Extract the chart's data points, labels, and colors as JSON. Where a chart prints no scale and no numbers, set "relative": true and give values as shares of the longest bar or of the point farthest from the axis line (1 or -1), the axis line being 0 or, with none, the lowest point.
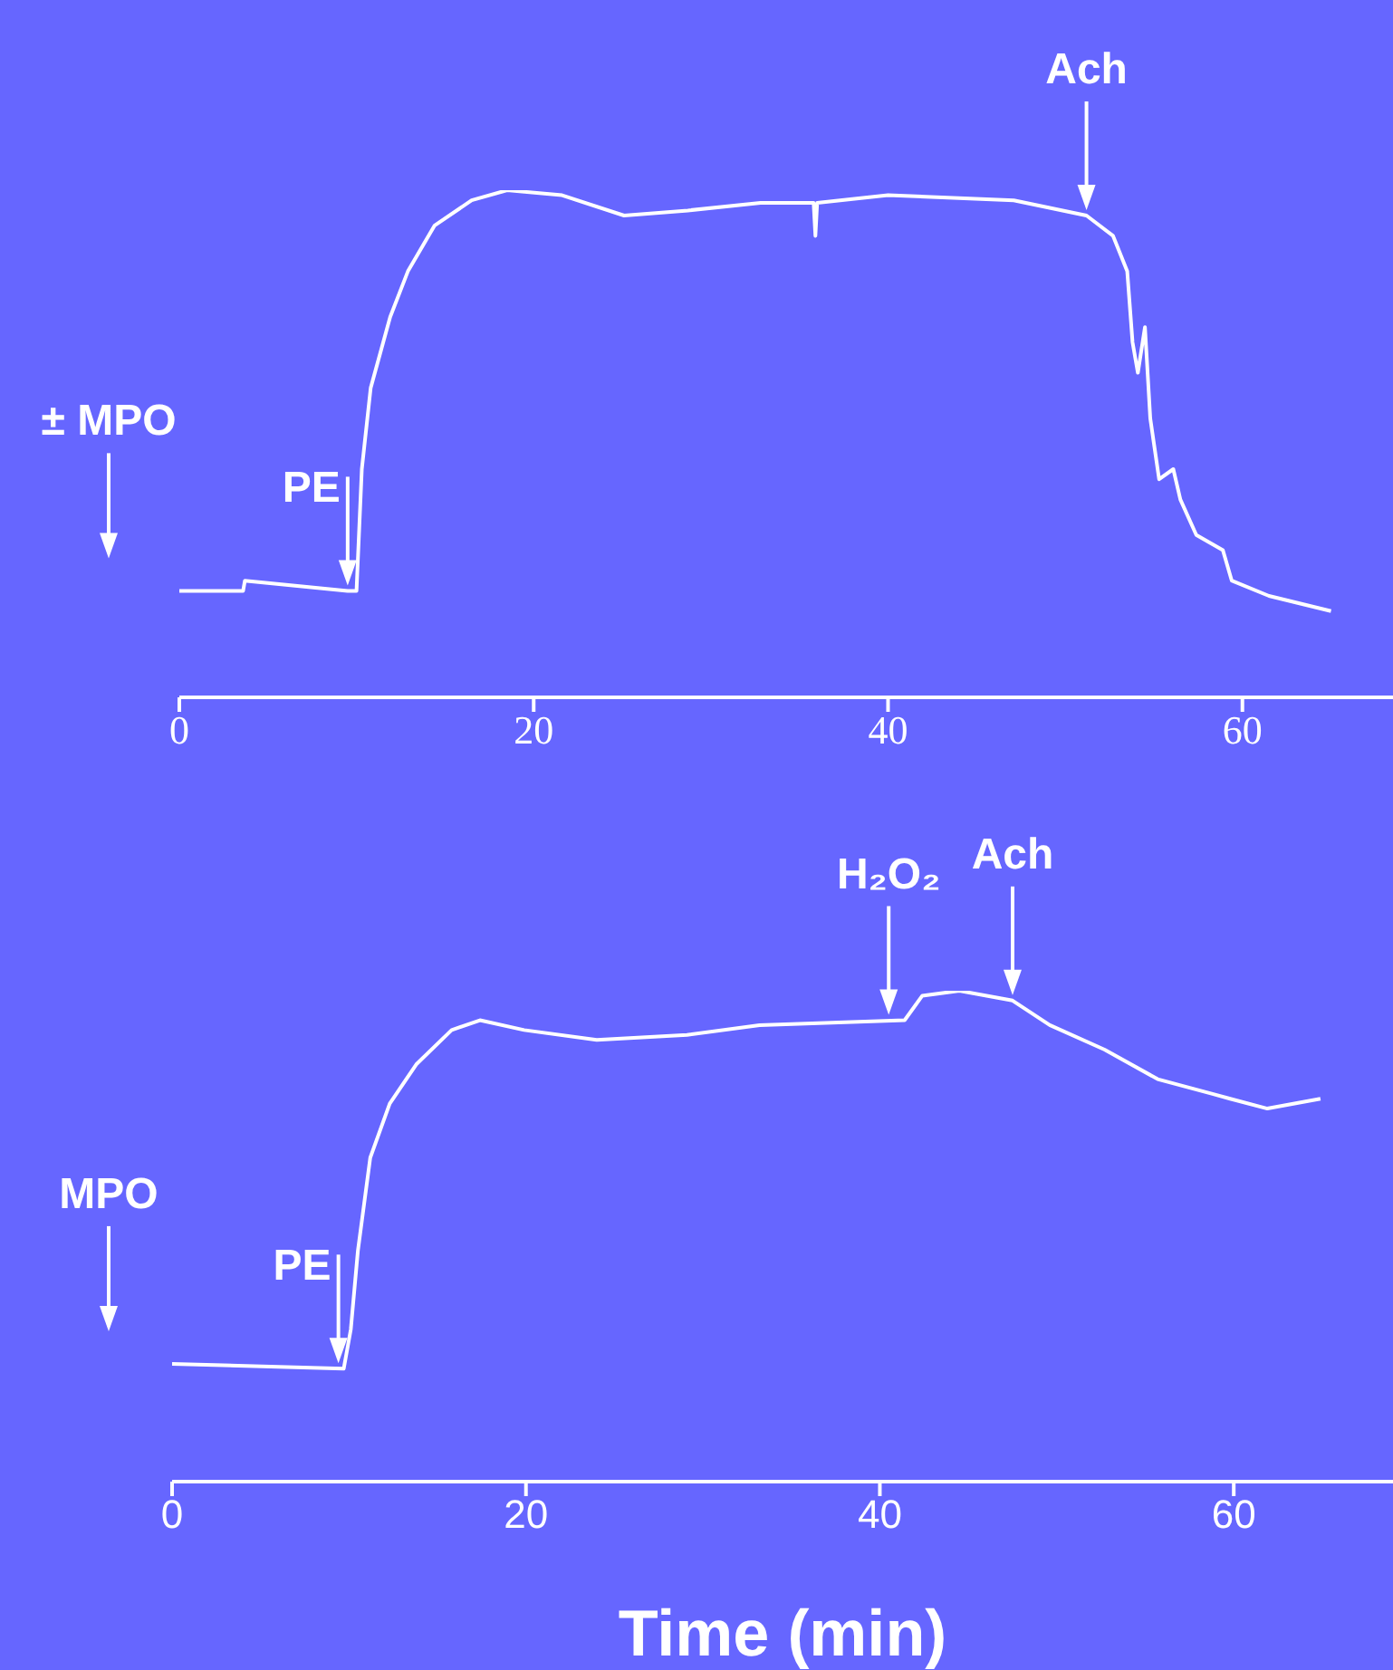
{
  "chart_data": [
    {
      "type": "line",
      "relative": true,
      "xlim": [
        0,
        68.5
      ],
      "xticks": [
        0,
        20,
        40,
        60
      ],
      "annotations": [
        "± MPO",
        {
          "text": "PE",
          "x": 9.5,
          "y": 0.21
        },
        {
          "text": "Ach",
          "x": 51.2,
          "y": 0.95
        }
      ],
      "series": [
        {
          "color": "#ffffff",
          "x": [
            0,
            3.6,
            3.7,
            9.5,
            10.0,
            10.3,
            10.8,
            11.9,
            12.9,
            14.4,
            16.5,
            18.5,
            21.6,
            25.1,
            28.7,
            32.8,
            35.8,
            35.9,
            36.0,
            40,
            47.1,
            51.2,
            52.7,
            53.5,
            53.8,
            54.1,
            54.5,
            54.8,
            55.3,
            56.1,
            56.5,
            57.4,
            58.9,
            59.4,
            61.5,
            65.0
          ],
          "values": [
            0.21,
            0.21,
            0.23,
            0.21,
            0.21,
            0.45,
            0.61,
            0.75,
            0.84,
            0.93,
            0.98,
            1.0,
            0.99,
            0.95,
            0.96,
            0.975,
            0.975,
            0.91,
            0.975,
            0.99,
            0.98,
            0.95,
            0.91,
            0.84,
            0.7,
            0.64,
            0.73,
            0.55,
            0.43,
            0.45,
            0.39,
            0.32,
            0.29,
            0.23,
            0.2,
            0.17
          ]
        }
      ]
    },
    {
      "type": "line",
      "relative": true,
      "xlim": [
        0,
        69
      ],
      "xticks": [
        0,
        20,
        40,
        60
      ],
      "xlabel": "Time (min)",
      "annotations": [
        "MPO",
        {
          "text": "PE",
          "x": 9.4,
          "y": 0.23
        },
        {
          "text": "H₂O₂",
          "x": 40.5,
          "y": 0.94
        },
        {
          "text": "Ach",
          "x": 47.5,
          "y": 0.98
        }
      ],
      "series": [
        {
          "color": "#ffffff",
          "x": [
            0,
            9.7,
            10.1,
            10.5,
            11.2,
            12.3,
            13.8,
            15.8,
            17.4,
            19.9,
            24.0,
            29.1,
            33.2,
            41.4,
            42.4,
            44.5,
            47.5,
            49.6,
            52.7,
            55.7,
            58.8,
            59.8,
            61.9,
            64.9
          ],
          "values": [
            0.24,
            0.23,
            0.31,
            0.47,
            0.66,
            0.77,
            0.85,
            0.92,
            0.94,
            0.92,
            0.9,
            0.91,
            0.93,
            0.94,
            0.99,
            1.0,
            0.98,
            0.93,
            0.88,
            0.82,
            0.79,
            0.78,
            0.76,
            0.78
          ]
        }
      ]
    }
  ]
}
